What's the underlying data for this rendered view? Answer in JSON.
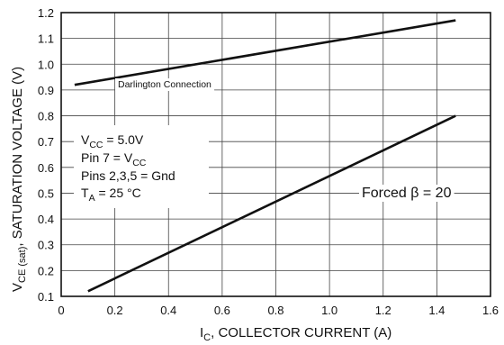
{
  "chart_data": {
    "type": "line",
    "title": "",
    "xlabel": {
      "symbol": "I",
      "subscript": "C",
      "text": ", COLLECTOR CURRENT (A)"
    },
    "ylabel": {
      "symbol": "V",
      "subscript": "CE (sat)",
      "text": ", SATURATION VOLTAGE (V)"
    },
    "xlim": [
      0,
      1.6
    ],
    "ylim": [
      0.1,
      1.2
    ],
    "xticks": [
      "0",
      "0.2",
      "0.4",
      "0.6",
      "0.8",
      "1.0",
      "1.2",
      "1.4",
      "1.6"
    ],
    "yticks": [
      "0.1",
      "0.2",
      "0.3",
      "0.4",
      "0.5",
      "0.6",
      "0.7",
      "0.8",
      "0.9",
      "1.0",
      "1.1",
      "1.2"
    ],
    "grid": true,
    "series": [
      {
        "name": "Darlington Connection",
        "x": [
          0.05,
          1.47
        ],
        "y": [
          0.92,
          1.17
        ]
      },
      {
        "name": "Forced β = 20",
        "x": [
          0.1,
          1.47
        ],
        "y": [
          0.12,
          0.8
        ]
      }
    ],
    "annotations": {
      "conditions": [
        {
          "main": "V",
          "sub": "CC",
          "rest": " = 5.0V"
        },
        {
          "main": "Pin 7 = V",
          "sub": "CC",
          "rest": ""
        },
        {
          "main": "Pins 2,3,5 = Gnd",
          "sub": "",
          "rest": ""
        },
        {
          "main": "T",
          "sub": "A",
          "rest": " = 25 °C"
        }
      ]
    }
  }
}
